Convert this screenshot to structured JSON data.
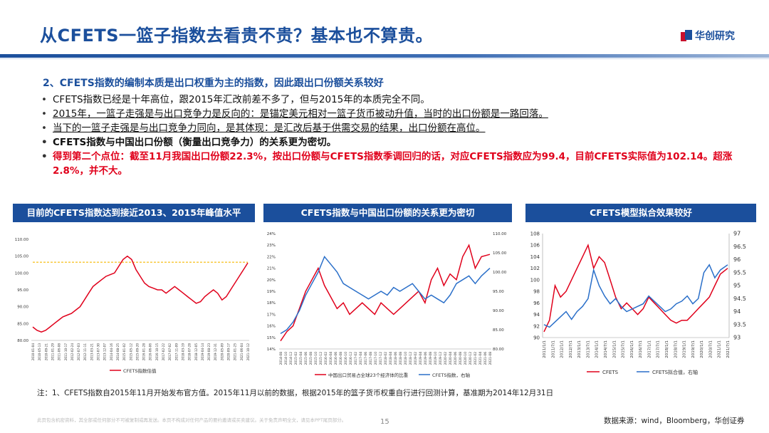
{
  "header": {
    "title": "从CFETS一篮子指数去看贵不贵？基本也不算贵。",
    "logo_text": "华创研究"
  },
  "section": {
    "heading": "2、CFETS指数的编制本质是出口权重为主的指数，因此跟出口份额关系较好",
    "bullets": [
      "CFETS指数已经是十年高位，跟2015年汇改前差不多了，但与2015年的本质完全不同。",
      "2015年，一篮子走强是与出口竞争力是反向的：是锚定美元相对一篮子货币被动升值，当时的出口份额是一路回落。",
      "当下的一篮子走强是与出口竞争力同向，是其体现：是汇改后基于供需交易的结果，出口份额在高位。",
      "CFETS指数与中国出口份额（衡量出口竞争力）的关系更为密切。",
      "得到第二个点位：截至11月我国出口份额22.3%，按出口份额与CFETS指数季调回归的话，对应CFETS指数应为99.4，目前CFETS实际值为102.14。超涨2.8%，并不大。"
    ]
  },
  "charts": {
    "c1": {
      "header": "目前的CFETS指数达到接近2013、2015年峰值水平",
      "legend": "CFETS指数估值",
      "yticks": [
        "110.00",
        "105.00",
        "100.00",
        "95.00",
        "90.00",
        "85.00",
        "80.00"
      ],
      "xticks": [
        "2010-01-04",
        "2010-05-13",
        "2010-09-21",
        "2011-01-29",
        "2011-06-08",
        "2011-10-17",
        "2012-02-24",
        "2012-07-03",
        "2012-11-11",
        "2013-03-21",
        "2013-07-30",
        "2013-12-07",
        "2014-04-16",
        "2014-08-25",
        "2015-01-02",
        "2015-05-12",
        "2015-09-20",
        "2016-01-28",
        "2016-06-06",
        "2016-10-15",
        "2017-02-22",
        "2017-07-02",
        "2017-11-09",
        "2018-03-19",
        "2018-07-28",
        "2018-12-05",
        "2019-04-14",
        "2019-08-23",
        "2019-12-31",
        "2020-05-09",
        "2020-09-17",
        "2021-01-25",
        "2021-06-04",
        "2021-10-12"
      ],
      "colors": {
        "line": "#e0001b",
        "ref": "#f5b800"
      }
    },
    "c2": {
      "header": "CFETS指数与中国出口份额的关系更为密切",
      "legend1": "中国出口贸易占全球23个经济体的比重",
      "legend2": "CFETS指数，右轴",
      "yticks_left": [
        "24%",
        "23%",
        "22%",
        "21%",
        "20%",
        "19%",
        "18%",
        "17%",
        "16%",
        "15%",
        "14%"
      ],
      "yticks_right": [
        "110.00",
        "105.00",
        "100.00",
        "95.00",
        "90.00",
        "85.00",
        "80.00"
      ],
      "xticks": [
        "2014-08",
        "2014-10",
        "2014-12",
        "2015-02",
        "2015-04",
        "2015-06",
        "2015-08",
        "2015-10",
        "2015-12",
        "2016-02",
        "2016-04",
        "2016-06",
        "2016-08",
        "2016-10",
        "2016-12",
        "2017-02",
        "2017-04",
        "2017-06",
        "2017-08",
        "2017-10",
        "2017-12",
        "2018-02",
        "2018-04",
        "2018-06",
        "2018-08",
        "2018-10",
        "2018-12",
        "2019-02",
        "2019-04",
        "2019-06",
        "2019-08",
        "2019-10",
        "2019-12",
        "2020-02",
        "2020-04",
        "2020-06",
        "2020-08",
        "2020-10",
        "2020-12",
        "2021-02",
        "2021-04",
        "2021-06",
        "2021-08"
      ],
      "colors": {
        "share": "#e0001b",
        "cfets": "#2a6fc9"
      }
    },
    "c3": {
      "header": "CFETS模型拟合效果较好",
      "legend1": "CFETS",
      "legend2": "CFETS拟合值，右轴",
      "yticks_left": [
        "108",
        "106",
        "104",
        "102",
        "100",
        "98",
        "96",
        "94",
        "92",
        "90"
      ],
      "yticks_right": [
        "97",
        "96.5",
        "96",
        "95.5",
        "95",
        "94.5",
        "94",
        "93.5",
        "93"
      ],
      "xticks": [
        "2011/1/1",
        "2011/7/1",
        "2012/1/1",
        "2012/7/1",
        "2013/1/1",
        "2013/7/1",
        "2014/1/1",
        "2014/7/1",
        "2015/1/1",
        "2015/7/1",
        "2016/1/1",
        "2016/7/1",
        "2017/1/1",
        "2017/7/1",
        "2018/1/1",
        "2018/7/1",
        "2019/1/1",
        "2019/7/1",
        "2020/1/1",
        "2020/7/1",
        "2021/1/1",
        "2021/7/1"
      ],
      "colors": {
        "cfets": "#e0001b",
        "fit": "#2a6fc9"
      }
    }
  },
  "chart_data": [
    {
      "type": "line",
      "title": "目前的CFETS指数达到接近2013、2015年峰值水平",
      "ylim": [
        80,
        110
      ],
      "x_range": [
        "2010-01-04",
        "2021-12-03"
      ],
      "reference_line": 103.2,
      "series": [
        {
          "name": "CFETS指数估值",
          "x_frac": [
            0,
            0.02,
            0.04,
            0.06,
            0.08,
            0.1,
            0.12,
            0.14,
            0.16,
            0.18,
            0.2,
            0.22,
            0.24,
            0.26,
            0.28,
            0.3,
            0.32,
            0.34,
            0.36,
            0.38,
            0.4,
            0.42,
            0.44,
            0.46,
            0.48,
            0.5,
            0.52,
            0.54,
            0.56,
            0.58,
            0.6,
            0.62,
            0.64,
            0.66,
            0.68,
            0.7,
            0.72,
            0.74,
            0.76,
            0.78,
            0.8,
            0.82,
            0.84,
            0.86,
            0.88,
            0.9,
            0.92,
            0.94,
            0.96,
            0.98,
            1.0
          ],
          "values": [
            84,
            83,
            82.5,
            83,
            84,
            85,
            86,
            87,
            87.5,
            88,
            89,
            90,
            92,
            94,
            96,
            97,
            98,
            99,
            99.5,
            100,
            102,
            104,
            105,
            104,
            101,
            99,
            97,
            96,
            95.5,
            95,
            95,
            94,
            95,
            96,
            95,
            94,
            93,
            92,
            91,
            91.5,
            93,
            94,
            95,
            94,
            92,
            93,
            95,
            97,
            99,
            101,
            103
          ]
        }
      ]
    },
    {
      "type": "line",
      "title": "CFETS指数与中国出口份额的关系更为密切",
      "x_range": [
        "2014-08",
        "2021-09"
      ],
      "ylim_left": [
        0.14,
        0.24
      ],
      "ylim_right": [
        80,
        110
      ],
      "series": [
        {
          "name": "中国出口贸易占全球23个经济体的比重",
          "axis": "left",
          "x_frac": [
            0,
            0.03,
            0.06,
            0.09,
            0.12,
            0.15,
            0.18,
            0.21,
            0.24,
            0.27,
            0.3,
            0.33,
            0.36,
            0.39,
            0.42,
            0.45,
            0.48,
            0.51,
            0.54,
            0.57,
            0.6,
            0.63,
            0.66,
            0.69,
            0.72,
            0.75,
            0.78,
            0.81,
            0.84,
            0.87,
            0.9,
            0.93,
            0.96,
            1.0
          ],
          "values": [
            0.147,
            0.155,
            0.16,
            0.175,
            0.19,
            0.2,
            0.21,
            0.195,
            0.185,
            0.175,
            0.18,
            0.17,
            0.175,
            0.18,
            0.175,
            0.17,
            0.18,
            0.175,
            0.17,
            0.175,
            0.18,
            0.185,
            0.19,
            0.18,
            0.2,
            0.21,
            0.195,
            0.205,
            0.2,
            0.22,
            0.23,
            0.21,
            0.22,
            0.222
          ]
        },
        {
          "name": "CFETS指数，右轴",
          "axis": "right",
          "x_frac": [
            0,
            0.03,
            0.06,
            0.09,
            0.12,
            0.15,
            0.18,
            0.21,
            0.24,
            0.27,
            0.3,
            0.33,
            0.36,
            0.39,
            0.42,
            0.45,
            0.48,
            0.51,
            0.54,
            0.57,
            0.6,
            0.63,
            0.66,
            0.69,
            0.72,
            0.75,
            0.78,
            0.81,
            0.84,
            0.87,
            0.9,
            0.93,
            0.96,
            1.0
          ],
          "values": [
            84,
            85,
            87,
            90,
            94,
            97,
            100,
            104,
            102,
            100,
            97,
            96,
            95,
            94,
            93,
            94,
            95,
            94,
            96,
            95,
            96,
            97,
            95,
            93,
            94,
            93,
            92,
            94,
            97,
            98,
            99,
            97,
            99,
            101
          ]
        }
      ]
    },
    {
      "type": "line",
      "title": "CFETS模型拟合效果较好",
      "x_range": [
        "2011/1/1",
        "2021/12/1"
      ],
      "ylim_left": [
        90,
        108
      ],
      "ylim_right": [
        93,
        97
      ],
      "series": [
        {
          "name": "CFETS",
          "axis": "left",
          "x_frac": [
            0,
            0.03,
            0.06,
            0.09,
            0.12,
            0.15,
            0.18,
            0.21,
            0.24,
            0.27,
            0.3,
            0.33,
            0.36,
            0.39,
            0.42,
            0.45,
            0.48,
            0.51,
            0.54,
            0.57,
            0.6,
            0.63,
            0.66,
            0.69,
            0.72,
            0.75,
            0.78,
            0.81,
            0.84,
            0.87,
            0.9,
            0.93,
            0.96,
            1.0
          ],
          "values": [
            91,
            93,
            99,
            97,
            98,
            100,
            102,
            104,
            106,
            102,
            104,
            103,
            100,
            97,
            95,
            96,
            95,
            94,
            95,
            97,
            96,
            95,
            94,
            93,
            92.5,
            93,
            93,
            94,
            95,
            96,
            97,
            99,
            101,
            102
          ]
        },
        {
          "name": "CFETS拟合值，右轴",
          "axis": "right",
          "x_frac": [
            0,
            0.03,
            0.06,
            0.09,
            0.12,
            0.15,
            0.18,
            0.21,
            0.24,
            0.27,
            0.3,
            0.33,
            0.36,
            0.39,
            0.42,
            0.45,
            0.48,
            0.51,
            0.54,
            0.57,
            0.6,
            0.63,
            0.66,
            0.69,
            0.72,
            0.75,
            0.78,
            0.81,
            0.84,
            0.87,
            0.9,
            0.93,
            0.96,
            1.0
          ],
          "values": [
            93.5,
            93.4,
            93.6,
            93.8,
            94.0,
            93.7,
            94.0,
            94.2,
            94.5,
            95.6,
            95.0,
            94.6,
            94.3,
            94.5,
            94.2,
            94.0,
            94.1,
            94.2,
            94.3,
            94.6,
            94.4,
            94.2,
            94.0,
            94.1,
            94.3,
            94.4,
            94.6,
            94.3,
            94.5,
            95.5,
            95.8,
            95.3,
            95.6,
            95.8
          ]
        }
      ]
    }
  ],
  "footer": {
    "note": "注：1、CFETS指数自2015年11月开始发布官方值。2015年11月以前的数据，根据2015年的篮子货币权重自行进行回测计算，基准期为2014年12月31日",
    "disclaimer": "此页包含机密资料，其全部或任何部分不可被复制或再发送。本页不构成对任何产品的要约邀请或买卖建议。关于免责声明全文，请见本PPT尾页部分。",
    "page": "15",
    "source": "数据来源：wind，Bloomberg，华创证券"
  }
}
